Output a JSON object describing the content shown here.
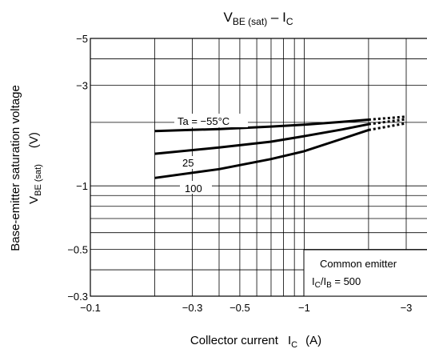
{
  "chart_data": {
    "type": "line",
    "title": {
      "main": "V",
      "sub": "BE (sat)",
      "sep": " – I",
      "sub2": "C"
    },
    "xlabel": {
      "text": "Collector current",
      "sym": "I",
      "sub": "C",
      "unit": "(A)"
    },
    "ylabel": {
      "line1": "Base-emitter saturation voltage",
      "sym": "V",
      "sub": "BE (sat)",
      "unit": "(V)"
    },
    "x_scale": "log",
    "y_scale": "log",
    "xlim": [
      -0.1,
      -3
    ],
    "ylim": [
      -0.3,
      -5
    ],
    "x_ticks": [
      {
        "value": -0.1,
        "label": "−0.1"
      },
      {
        "value": -0.3,
        "label": "−0.3"
      },
      {
        "value": -0.5,
        "label": "−0.5"
      },
      {
        "value": -1,
        "label": "−1"
      },
      {
        "value": -3,
        "label": "−3"
      }
    ],
    "y_ticks": [
      {
        "value": -5,
        "label": "−5"
      },
      {
        "value": -3,
        "label": "−3"
      },
      {
        "value": -1,
        "label": "−1"
      },
      {
        "value": -0.5,
        "label": "−0.5"
      },
      {
        "value": -0.3,
        "label": "−0.3"
      }
    ],
    "grid": true,
    "series": [
      {
        "name": "Ta = −55°C",
        "x": [
          -0.2,
          -0.4,
          -0.7,
          -1.0,
          -1.5,
          -2.0
        ],
        "y": [
          -1.82,
          -1.86,
          -1.91,
          -1.95,
          -2.01,
          -2.06
        ],
        "dotted_x": [
          -2.0,
          -3.0
        ],
        "dotted_y": [
          -2.06,
          -2.13
        ]
      },
      {
        "name": "25",
        "x": [
          -0.2,
          -0.4,
          -0.7,
          -1.0,
          -1.5,
          -2.0
        ],
        "y": [
          -1.42,
          -1.52,
          -1.62,
          -1.72,
          -1.85,
          -1.96
        ],
        "dotted_x": [
          -2.0,
          -3.0
        ],
        "dotted_y": [
          -1.96,
          -2.07
        ]
      },
      {
        "name": "100",
        "x": [
          -0.2,
          -0.4,
          -0.7,
          -1.0,
          -1.5,
          -2.0
        ],
        "y": [
          -1.09,
          -1.2,
          -1.34,
          -1.46,
          -1.67,
          -1.84
        ],
        "dotted_x": [
          -2.0,
          -3.0
        ],
        "dotted_y": [
          -1.84,
          -1.98
        ]
      }
    ],
    "legend": {
      "line1": "Common emitter",
      "line2_sym1": "I",
      "line2_sub1": "C",
      "line2_slash": "/I",
      "line2_sub2": "B",
      "line2_rest": " = 500"
    }
  }
}
